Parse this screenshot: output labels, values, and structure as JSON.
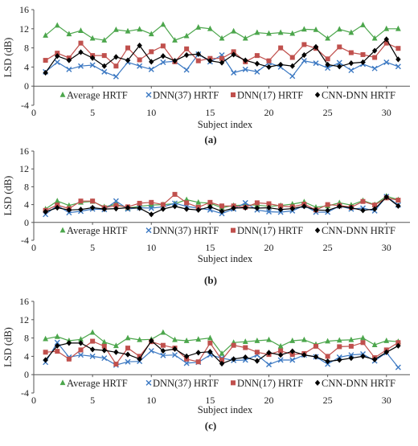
{
  "chart_data": [
    {
      "type": "line",
      "panel_label": "(a)",
      "xlabel": "Subject index",
      "ylabel": "LSD (dB)",
      "xlim": [
        0,
        32
      ],
      "ylim": [
        -4,
        16
      ],
      "x_ticks": [
        0,
        5,
        10,
        15,
        20,
        25,
        30
      ],
      "y_ticks": [
        -4,
        0,
        4,
        8,
        12,
        16
      ],
      "grid": false,
      "legend_position": "bottom inside",
      "x": [
        1,
        2,
        3,
        4,
        5,
        6,
        7,
        8,
        9,
        10,
        11,
        12,
        13,
        14,
        15,
        16,
        17,
        18,
        19,
        20,
        21,
        22,
        23,
        24,
        25,
        26,
        27,
        28,
        29,
        30,
        31
      ],
      "series": [
        {
          "name": "Average HRTF",
          "color": "#4ca64c",
          "marker": "triangle",
          "values": [
            10.6,
            12.7,
            10.9,
            11.6,
            10.0,
            9.6,
            11.8,
            11.5,
            11.9,
            10.9,
            12.9,
            9.6,
            10.5,
            12.3,
            12.0,
            10.0,
            11.5,
            10.0,
            11.2,
            11.0,
            11.2,
            11.0,
            11.9,
            11.8,
            10.0,
            11.9,
            11.2,
            12.8,
            10.0,
            12.0,
            12.0
          ]
        },
        {
          "name": "DNN(37) HRTF",
          "color": "#3b78c2",
          "marker": "x",
          "values": [
            3.0,
            5.0,
            3.5,
            4.2,
            4.4,
            3.0,
            2.0,
            5.0,
            4.2,
            3.5,
            5.0,
            5.2,
            3.4,
            6.7,
            5.1,
            6.5,
            2.8,
            3.5,
            3.0,
            4.9,
            4.0,
            2.1,
            5.3,
            4.8,
            3.8,
            4.9,
            3.3,
            4.6,
            3.7,
            5.0,
            4.1
          ]
        },
        {
          "name": "DNN(17) HRTF",
          "color": "#c0504d",
          "marker": "square",
          "values": [
            5.4,
            6.9,
            5.9,
            9.0,
            6.4,
            6.4,
            4.2,
            8.0,
            5.5,
            7.2,
            8.4,
            5.1,
            7.8,
            5.3,
            5.8,
            5.8,
            7.2,
            5.1,
            6.4,
            5.3,
            8.0,
            6.0,
            8.7,
            7.9,
            5.7,
            8.2,
            7.0,
            6.6,
            6.0,
            9.0,
            7.9
          ]
        },
        {
          "name": "CNN-DNN HRTF",
          "color": "#000000",
          "marker": "diamond",
          "values": [
            2.8,
            6.3,
            5.4,
            7.1,
            5.9,
            4.2,
            6.1,
            5.4,
            8.5,
            5.1,
            6.3,
            5.3,
            6.5,
            6.7,
            5.3,
            4.9,
            6.6,
            5.4,
            4.7,
            4.0,
            4.5,
            4.2,
            6.5,
            8.2,
            4.5,
            4.1,
            4.8,
            5.0,
            7.4,
            9.8,
            5.6
          ]
        }
      ]
    },
    {
      "type": "line",
      "panel_label": "(b)",
      "xlabel": "Subject index",
      "ylabel": "LSD (dB)",
      "xlim": [
        0,
        32
      ],
      "ylim": [
        -4,
        16
      ],
      "x_ticks": [
        0,
        5,
        10,
        15,
        20,
        25,
        30
      ],
      "y_ticks": [
        -4,
        0,
        4,
        8,
        12,
        16
      ],
      "grid": false,
      "legend_position": "bottom inside",
      "x": [
        1,
        2,
        3,
        4,
        5,
        6,
        7,
        8,
        9,
        10,
        11,
        12,
        13,
        14,
        15,
        16,
        17,
        18,
        19,
        20,
        21,
        22,
        23,
        24,
        25,
        26,
        27,
        28,
        29,
        30,
        31
      ],
      "series": [
        {
          "name": "Average HRTF",
          "color": "#4ca64c",
          "marker": "triangle",
          "values": [
            3.0,
            4.8,
            3.8,
            4.5,
            4.7,
            3.5,
            4.1,
            3.2,
            3.6,
            3.9,
            4.0,
            4.2,
            5.1,
            4.5,
            4.3,
            3.3,
            3.8,
            3.9,
            3.9,
            3.6,
            3.8,
            4.1,
            4.6,
            3.4,
            3.7,
            4.4,
            3.9,
            4.9,
            4.0,
            5.9,
            5.1
          ]
        },
        {
          "name": "DNN(37) HRTF",
          "color": "#3b78c2",
          "marker": "x",
          "values": [
            1.8,
            3.8,
            2.2,
            2.5,
            3.0,
            2.9,
            4.8,
            3.0,
            3.3,
            3.2,
            3.5,
            4.3,
            3.6,
            3.2,
            2.8,
            2.0,
            3.0,
            4.4,
            2.8,
            2.4,
            2.3,
            2.6,
            3.8,
            2.3,
            2.3,
            3.7,
            3.0,
            3.2,
            2.6,
            5.8,
            3.9
          ]
        },
        {
          "name": "DNN(17) HRTF",
          "color": "#c0504d",
          "marker": "square",
          "values": [
            2.7,
            3.9,
            3.1,
            4.8,
            4.8,
            3.3,
            3.8,
            3.5,
            4.3,
            4.5,
            4.0,
            6.3,
            4.4,
            3.4,
            4.5,
            3.7,
            3.7,
            3.4,
            4.4,
            4.2,
            3.7,
            3.5,
            4.1,
            2.8,
            4.0,
            3.8,
            3.4,
            4.7,
            3.9,
            5.5,
            5.0
          ]
        },
        {
          "name": "CNN-DNN HRTF",
          "color": "#000000",
          "marker": "diamond",
          "values": [
            2.4,
            3.3,
            2.8,
            2.9,
            3.3,
            3.0,
            3.1,
            3.3,
            3.2,
            1.8,
            3.0,
            3.6,
            3.0,
            2.8,
            3.5,
            2.5,
            3.2,
            3.3,
            3.2,
            3.3,
            2.9,
            3.1,
            3.6,
            2.8,
            2.7,
            3.6,
            3.3,
            2.7,
            3.0,
            5.7,
            3.7
          ]
        }
      ]
    },
    {
      "type": "line",
      "panel_label": "(c)",
      "xlabel": "Subject index",
      "ylabel": "LSD (dB)",
      "xlim": [
        0,
        32
      ],
      "ylim": [
        -4,
        16
      ],
      "x_ticks": [
        0,
        5,
        10,
        15,
        20,
        25,
        30
      ],
      "y_ticks": [
        -4,
        0,
        4,
        8,
        12,
        16
      ],
      "grid": false,
      "legend_position": "bottom inside",
      "x": [
        1,
        2,
        3,
        4,
        5,
        6,
        7,
        8,
        9,
        10,
        11,
        12,
        13,
        14,
        15,
        16,
        17,
        18,
        19,
        20,
        21,
        22,
        23,
        24,
        25,
        26,
        27,
        28,
        29,
        30,
        31
      ],
      "series": [
        {
          "name": "Average HRTF",
          "color": "#4ca64c",
          "marker": "triangle",
          "values": [
            7.8,
            8.3,
            7.4,
            7.7,
            9.2,
            7.1,
            6.3,
            8.0,
            7.6,
            7.7,
            9.2,
            7.6,
            7.4,
            7.7,
            8.0,
            4.6,
            7.0,
            7.2,
            7.4,
            7.6,
            6.2,
            7.4,
            7.6,
            6.6,
            7.3,
            7.5,
            7.6,
            8.0,
            6.5,
            7.4,
            7.2
          ]
        },
        {
          "name": "DNN(37) HRTF",
          "color": "#3b78c2",
          "marker": "x",
          "values": [
            2.7,
            7.0,
            3.8,
            4.3,
            4.0,
            3.6,
            2.1,
            2.8,
            2.9,
            5.2,
            4.2,
            4.3,
            2.5,
            2.7,
            4.3,
            3.6,
            3.1,
            3.2,
            4.3,
            2.2,
            3.2,
            3.2,
            4.3,
            3.9,
            2.3,
            3.8,
            4.3,
            4.5,
            3.0,
            4.8,
            1.6
          ]
        },
        {
          "name": "DNN(17) HRTF",
          "color": "#c0504d",
          "marker": "square",
          "values": [
            4.9,
            5.1,
            3.4,
            5.4,
            7.3,
            6.2,
            2.3,
            5.8,
            4.0,
            7.2,
            6.4,
            5.8,
            3.4,
            2.8,
            6.9,
            3.2,
            6.4,
            5.9,
            4.9,
            4.4,
            5.2,
            4.4,
            4.6,
            6.2,
            4.0,
            6.1,
            6.2,
            7.0,
            3.7,
            5.4,
            7.0
          ]
        },
        {
          "name": "CNN-DNN HRTF",
          "color": "#000000",
          "marker": "diamond",
          "values": [
            3.2,
            6.3,
            6.9,
            6.9,
            5.5,
            5.3,
            4.9,
            4.4,
            3.4,
            7.4,
            5.2,
            5.6,
            4.0,
            4.8,
            5.0,
            2.4,
            3.4,
            3.8,
            3.0,
            4.8,
            4.3,
            5.1,
            4.3,
            3.9,
            2.9,
            3.2,
            3.6,
            4.0,
            3.3,
            4.9,
            6.3
          ]
        }
      ]
    }
  ]
}
